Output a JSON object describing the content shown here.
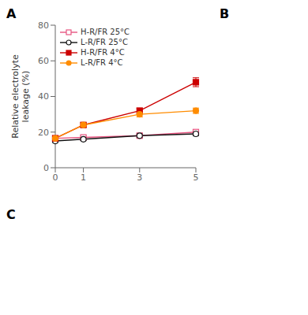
{
  "chart_data": {
    "type": "line",
    "ylabel": "Relative electrolyte\nleakage (%)",
    "annotations": [
      "A",
      "B",
      "C"
    ],
    "x": [
      0,
      1,
      3,
      5
    ],
    "xlim": [
      0,
      5
    ],
    "xticks": [
      0,
      1,
      3,
      5
    ],
    "ylim": [
      0,
      80
    ],
    "yticks": [
      0,
      20,
      40,
      60,
      80
    ],
    "grid": false,
    "legend": "upper left",
    "series": [
      {
        "name": "H-R/FR 25°C",
        "color": "#e75480",
        "marker": "open-square",
        "values": [
          16.5,
          17,
          18,
          20
        ],
        "error_bars": [
          1.0,
          0.8,
          1.0,
          1.2
        ]
      },
      {
        "name": "L-R/FR 25°C",
        "color": "#111111",
        "marker": "open-circle",
        "values": [
          15,
          16,
          18,
          19
        ],
        "error_bars": [
          0.8,
          0.8,
          1.0,
          1.0
        ]
      },
      {
        "name": "H-R/FR 4°C",
        "color": "#cc0000",
        "marker": "square",
        "values": [
          16.5,
          24,
          32,
          48
        ],
        "error_bars": [
          1.0,
          1.2,
          1.5,
          2.5
        ]
      },
      {
        "name": "L-R/FR 4°C",
        "color": "#ff8c00",
        "marker": "circle",
        "values": [
          16.5,
          24,
          30,
          32
        ],
        "error_bars": [
          1.0,
          1.2,
          1.5,
          1.5
        ]
      }
    ]
  }
}
